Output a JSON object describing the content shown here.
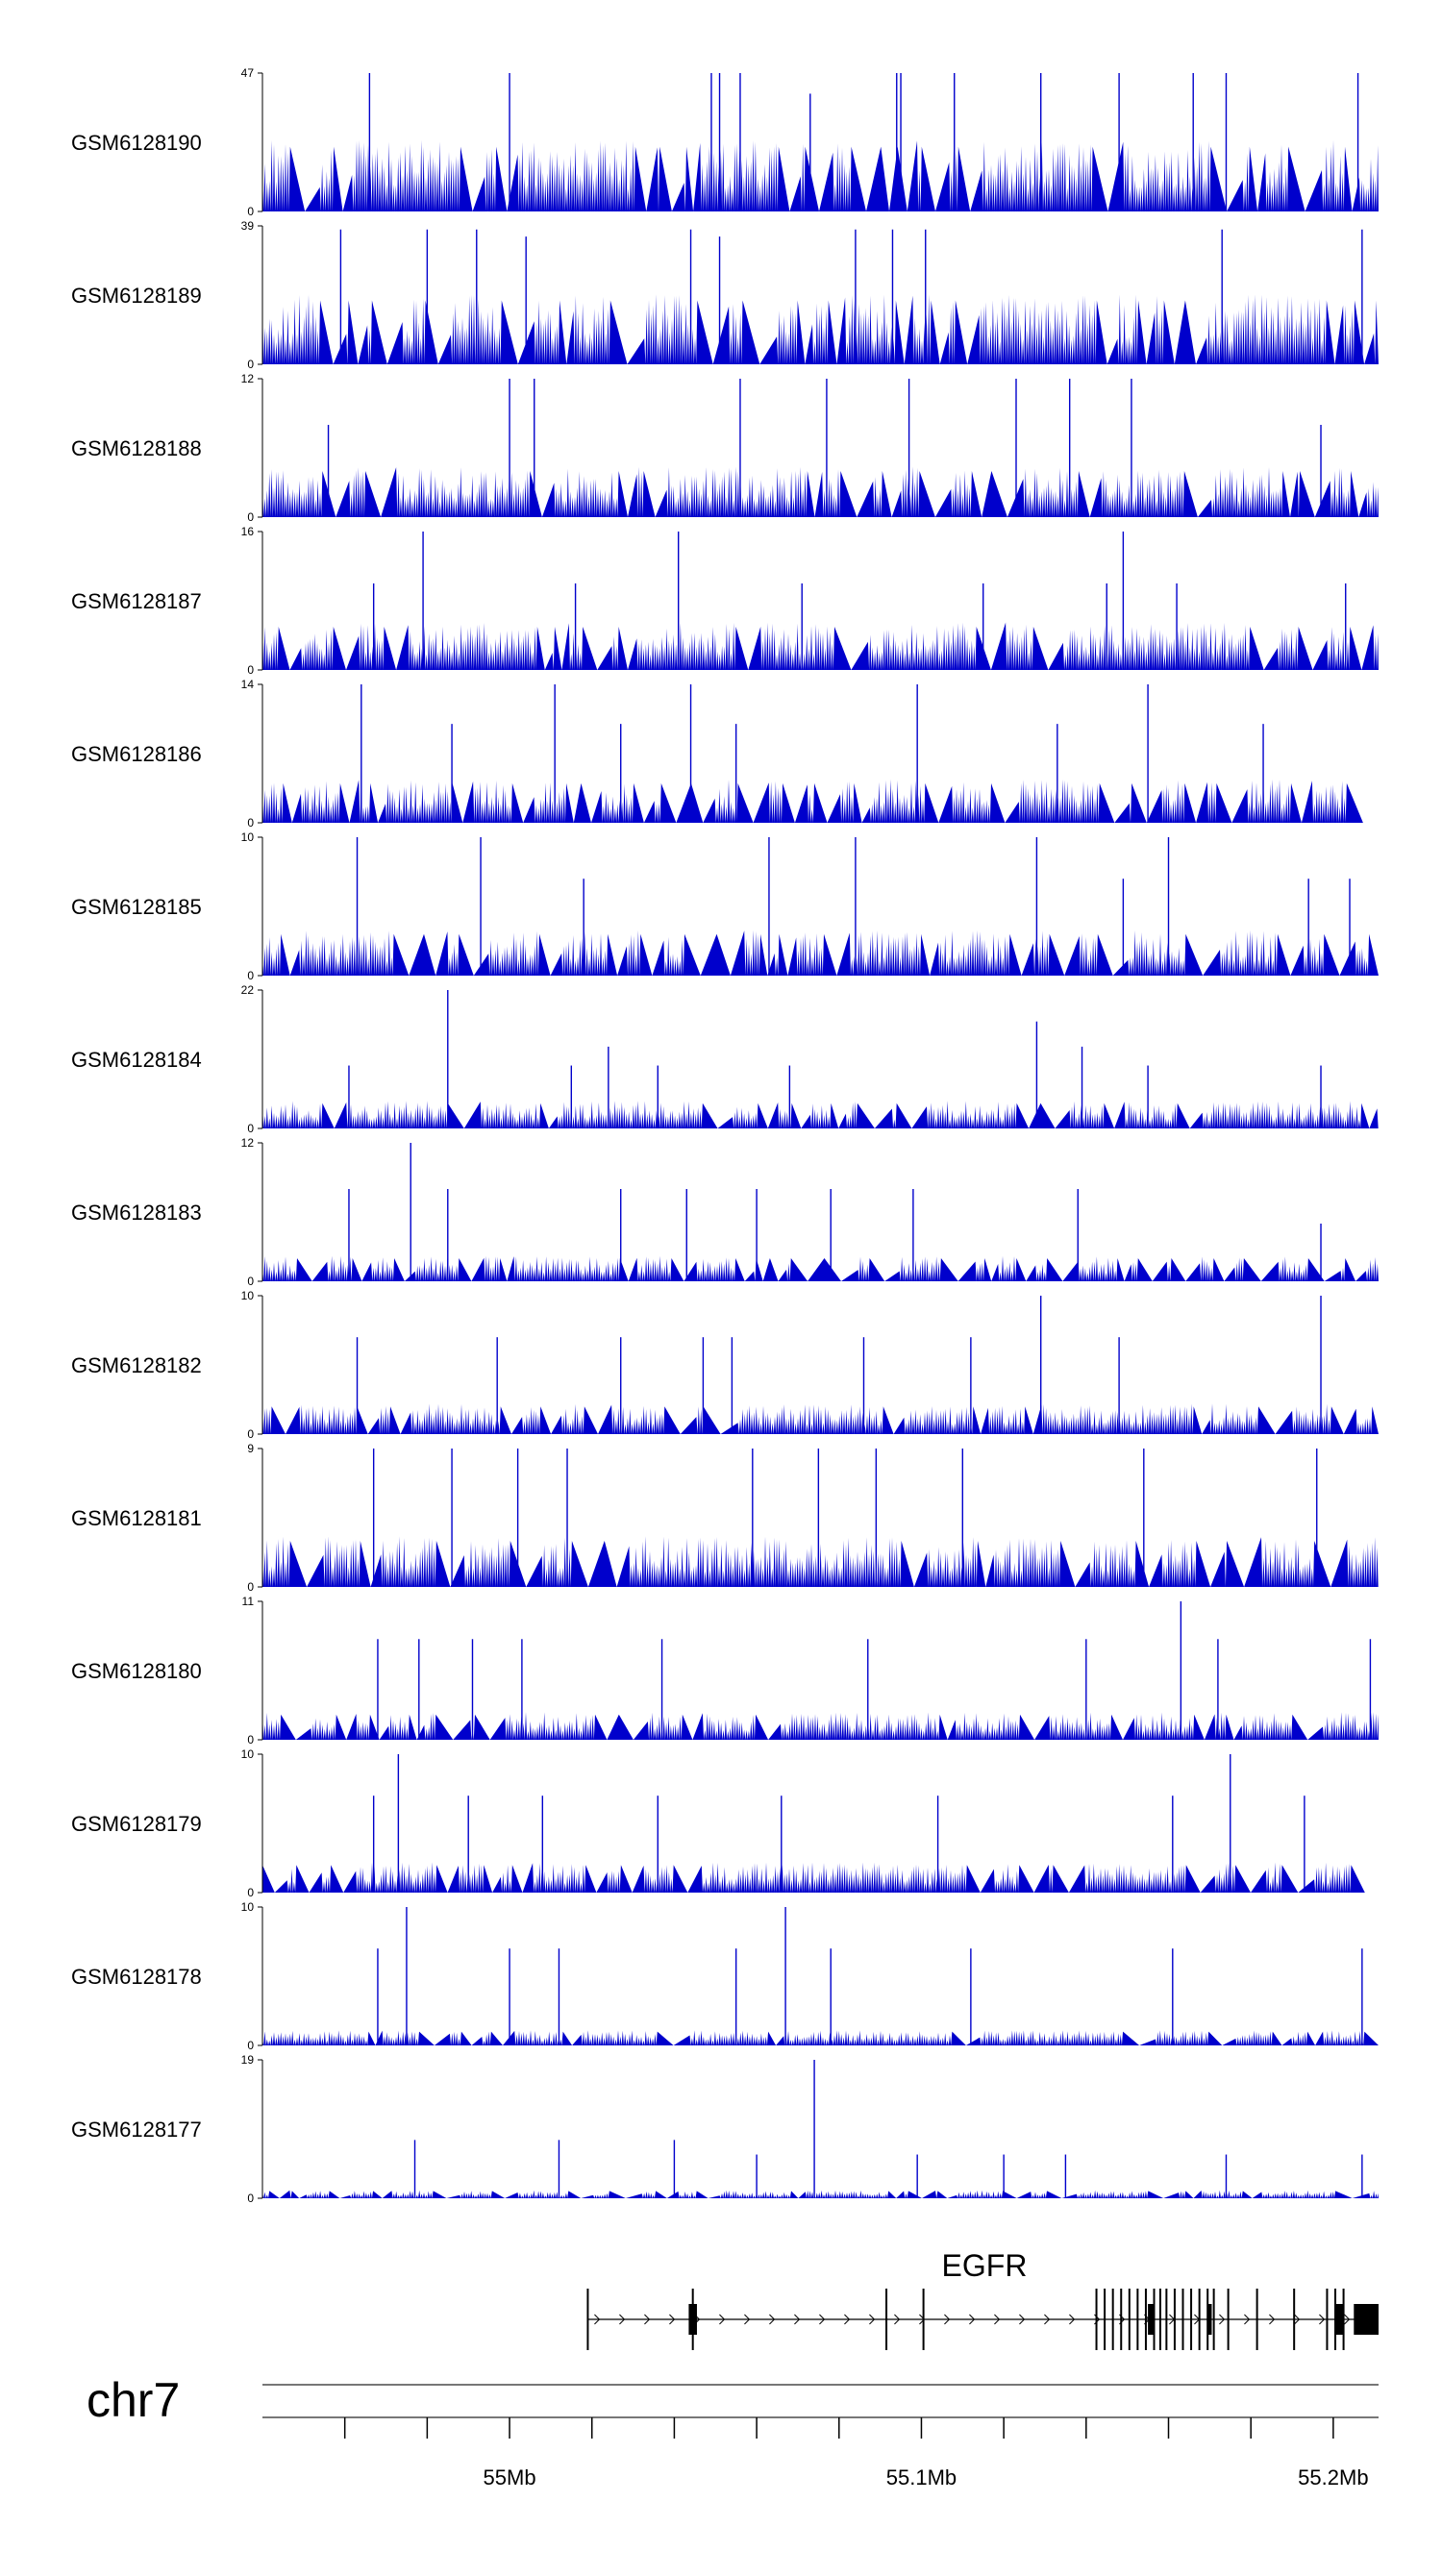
{
  "chart_data": {
    "type": "area",
    "title": "",
    "xlabel": "",
    "ylabel": "",
    "region_start_mb": 54.94,
    "region_end_mb": 55.211,
    "track_color": "#0000cc",
    "tracks": [
      {
        "name": "GSM6128190",
        "ymax": 47,
        "ymin": 0,
        "base": 22,
        "peaks": [
          [
            54.966,
            47
          ],
          [
            55.0,
            47
          ],
          [
            55.049,
            47
          ],
          [
            55.051,
            47
          ],
          [
            55.056,
            47
          ],
          [
            55.073,
            40
          ],
          [
            55.094,
            47
          ],
          [
            55.095,
            47
          ],
          [
            55.108,
            47
          ],
          [
            55.129,
            47
          ],
          [
            55.148,
            47
          ],
          [
            55.166,
            47
          ],
          [
            55.174,
            47
          ],
          [
            55.206,
            47
          ]
        ]
      },
      {
        "name": "GSM6128189",
        "ymax": 39,
        "ymin": 0,
        "base": 18,
        "peaks": [
          [
            54.959,
            38
          ],
          [
            54.98,
            38
          ],
          [
            54.992,
            38
          ],
          [
            55.004,
            36
          ],
          [
            55.044,
            38
          ],
          [
            55.051,
            36
          ],
          [
            55.084,
            38
          ],
          [
            55.093,
            38
          ],
          [
            55.101,
            38
          ],
          [
            55.173,
            38
          ],
          [
            55.207,
            38
          ]
        ]
      },
      {
        "name": "GSM6128188",
        "ymax": 12,
        "ymin": 0,
        "base": 4,
        "peaks": [
          [
            54.956,
            8
          ],
          [
            55.0,
            12
          ],
          [
            55.006,
            12
          ],
          [
            55.056,
            12
          ],
          [
            55.077,
            12
          ],
          [
            55.097,
            12
          ],
          [
            55.123,
            12
          ],
          [
            55.136,
            12
          ],
          [
            55.151,
            12
          ],
          [
            55.197,
            8
          ]
        ]
      },
      {
        "name": "GSM6128187",
        "ymax": 16,
        "ymin": 0,
        "base": 5,
        "peaks": [
          [
            54.967,
            10
          ],
          [
            54.979,
            16
          ],
          [
            55.016,
            10
          ],
          [
            55.041,
            16
          ],
          [
            55.071,
            10
          ],
          [
            55.115,
            10
          ],
          [
            55.145,
            10
          ],
          [
            55.149,
            16
          ],
          [
            55.162,
            10
          ],
          [
            55.203,
            10
          ]
        ]
      },
      {
        "name": "GSM6128186",
        "ymax": 14,
        "ymin": 0,
        "base": 4,
        "peaks": [
          [
            54.964,
            14
          ],
          [
            54.986,
            10
          ],
          [
            55.011,
            14
          ],
          [
            55.027,
            10
          ],
          [
            55.044,
            14
          ],
          [
            55.055,
            10
          ],
          [
            55.099,
            14
          ],
          [
            55.133,
            10
          ],
          [
            55.155,
            14
          ],
          [
            55.183,
            10
          ]
        ]
      },
      {
        "name": "GSM6128185",
        "ymax": 10,
        "ymin": 0,
        "base": 3,
        "peaks": [
          [
            54.963,
            10
          ],
          [
            54.993,
            10
          ],
          [
            55.018,
            7
          ],
          [
            55.063,
            10
          ],
          [
            55.084,
            10
          ],
          [
            55.128,
            10
          ],
          [
            55.149,
            7
          ],
          [
            55.16,
            10
          ],
          [
            55.194,
            7
          ],
          [
            55.204,
            7
          ]
        ]
      },
      {
        "name": "GSM6128184",
        "ymax": 22,
        "ymin": 0,
        "base": 4,
        "peaks": [
          [
            54.985,
            22
          ],
          [
            54.961,
            10
          ],
          [
            55.015,
            10
          ],
          [
            55.024,
            13
          ],
          [
            55.036,
            10
          ],
          [
            55.068,
            10
          ],
          [
            55.128,
            17
          ],
          [
            55.139,
            13
          ],
          [
            55.155,
            10
          ],
          [
            55.197,
            10
          ]
        ]
      },
      {
        "name": "GSM6128183",
        "ymax": 12,
        "ymin": 0,
        "base": 2,
        "peaks": [
          [
            54.961,
            8
          ],
          [
            54.976,
            12
          ],
          [
            54.985,
            8
          ],
          [
            55.027,
            8
          ],
          [
            55.043,
            8
          ],
          [
            55.06,
            8
          ],
          [
            55.078,
            8
          ],
          [
            55.098,
            8
          ],
          [
            55.138,
            8
          ],
          [
            55.197,
            5
          ]
        ]
      },
      {
        "name": "GSM6128182",
        "ymax": 10,
        "ymin": 0,
        "base": 2,
        "peaks": [
          [
            54.963,
            7
          ],
          [
            54.997,
            7
          ],
          [
            55.027,
            7
          ],
          [
            55.047,
            7
          ],
          [
            55.054,
            7
          ],
          [
            55.086,
            7
          ],
          [
            55.112,
            7
          ],
          [
            55.129,
            10
          ],
          [
            55.148,
            7
          ],
          [
            55.197,
            10
          ]
        ]
      },
      {
        "name": "GSM6128181",
        "ymax": 9,
        "ymin": 0,
        "base": 3,
        "peaks": [
          [
            54.967,
            9
          ],
          [
            54.986,
            9
          ],
          [
            55.002,
            9
          ],
          [
            55.014,
            9
          ],
          [
            55.059,
            9
          ],
          [
            55.075,
            9
          ],
          [
            55.089,
            9
          ],
          [
            55.11,
            9
          ],
          [
            55.154,
            9
          ],
          [
            55.196,
            9
          ]
        ]
      },
      {
        "name": "GSM6128180",
        "ymax": 11,
        "ymin": 0,
        "base": 2,
        "peaks": [
          [
            54.968,
            8
          ],
          [
            54.978,
            8
          ],
          [
            54.991,
            8
          ],
          [
            55.003,
            8
          ],
          [
            55.037,
            8
          ],
          [
            55.087,
            8
          ],
          [
            55.14,
            8
          ],
          [
            55.163,
            11
          ],
          [
            55.172,
            8
          ],
          [
            55.209,
            8
          ]
        ]
      },
      {
        "name": "GSM6128179",
        "ymax": 10,
        "ymin": 0,
        "base": 2,
        "peaks": [
          [
            54.967,
            7
          ],
          [
            54.973,
            10
          ],
          [
            54.99,
            7
          ],
          [
            55.008,
            7
          ],
          [
            55.036,
            7
          ],
          [
            55.066,
            7
          ],
          [
            55.104,
            7
          ],
          [
            55.161,
            7
          ],
          [
            55.175,
            10
          ],
          [
            55.193,
            7
          ]
        ]
      },
      {
        "name": "GSM6128178",
        "ymax": 10,
        "ymin": 0,
        "base": 1,
        "peaks": [
          [
            54.968,
            7
          ],
          [
            54.975,
            10
          ],
          [
            55.0,
            7
          ],
          [
            55.012,
            7
          ],
          [
            55.055,
            7
          ],
          [
            55.067,
            10
          ],
          [
            55.078,
            7
          ],
          [
            55.112,
            7
          ],
          [
            55.161,
            7
          ],
          [
            55.207,
            7
          ]
        ]
      },
      {
        "name": "GSM6128177",
        "ymax": 19,
        "ymin": 0,
        "base": 1,
        "peaks": [
          [
            54.977,
            8
          ],
          [
            55.012,
            8
          ],
          [
            55.04,
            8
          ],
          [
            55.06,
            6
          ],
          [
            55.074,
            19
          ],
          [
            55.099,
            6
          ],
          [
            55.12,
            6
          ],
          [
            55.135,
            6
          ],
          [
            55.174,
            6
          ],
          [
            55.207,
            6
          ]
        ]
      }
    ],
    "gene": {
      "name": "EGFR",
      "start_mb": 55.019,
      "end_mb": 55.211,
      "strand": "+",
      "exons_mb": [
        55.019,
        55.0445,
        55.0915,
        55.1005,
        55.1425,
        55.1445,
        55.1465,
        55.1485,
        55.1505,
        55.1525,
        55.1545,
        55.1565,
        55.158,
        55.1595,
        55.1615,
        55.1635,
        55.1655,
        55.1675,
        55.1695,
        55.171,
        55.1745,
        55.1815,
        55.1905,
        55.1985,
        55.2005,
        55.2025
      ],
      "thick_exons_mb": [
        [
          55.0435,
          55.0455
        ],
        [
          55.155,
          55.1565
        ],
        [
          55.1695,
          55.1705
        ],
        [
          55.2005,
          55.2025
        ],
        [
          55.205,
          55.211
        ]
      ]
    },
    "chromosome": "chr7",
    "axis_ticks_mb": [
      54.96,
      54.98,
      55.0,
      55.02,
      55.04,
      55.06,
      55.08,
      55.1,
      55.12,
      55.14,
      55.16,
      55.18,
      55.2
    ],
    "axis_labels": [
      {
        "mb": 55.0,
        "label": "55Mb"
      },
      {
        "mb": 55.1,
        "label": "55.1Mb"
      },
      {
        "mb": 55.2,
        "label": "55.2Mb"
      }
    ]
  }
}
